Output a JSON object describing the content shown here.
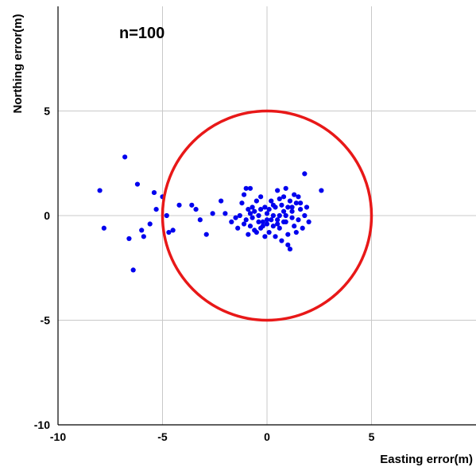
{
  "chart_data": {
    "type": "scatter",
    "annotation": "n=100",
    "xlabel": "Easting error(m)",
    "ylabel": "Northing error(m)",
    "xlim": [
      -10,
      10
    ],
    "ylim": [
      -10,
      10
    ],
    "x_ticks": [
      -10,
      -5,
      0,
      5
    ],
    "y_ticks": [
      -10,
      -5,
      0,
      5
    ],
    "grid": true,
    "point_color": "#0000ee",
    "circle": {
      "center": [
        0,
        0
      ],
      "radius": 5,
      "color": "#e81818"
    },
    "points": [
      [
        -8.0,
        1.2
      ],
      [
        -7.8,
        -0.6
      ],
      [
        -6.8,
        2.8
      ],
      [
        -6.6,
        -1.1
      ],
      [
        -6.4,
        -2.6
      ],
      [
        -6.2,
        1.5
      ],
      [
        -6.0,
        -0.7
      ],
      [
        -5.9,
        -1.0
      ],
      [
        -5.6,
        -0.4
      ],
      [
        -5.4,
        1.1
      ],
      [
        -5.3,
        0.3
      ],
      [
        -5.0,
        0.9
      ],
      [
        -4.8,
        0.0
      ],
      [
        -4.7,
        -0.8
      ],
      [
        -4.5,
        -0.7
      ],
      [
        -4.2,
        0.5
      ],
      [
        -3.6,
        0.5
      ],
      [
        -3.4,
        0.3
      ],
      [
        -3.2,
        -0.2
      ],
      [
        -2.9,
        -0.9
      ],
      [
        -2.6,
        0.1
      ],
      [
        -2.2,
        0.7
      ],
      [
        -2.0,
        0.1
      ],
      [
        -1.7,
        -0.3
      ],
      [
        -1.4,
        -0.6
      ],
      [
        -1.3,
        0.0
      ],
      [
        -1.2,
        0.6
      ],
      [
        -1.1,
        1.0
      ],
      [
        -1.0,
        -0.2
      ],
      [
        -1.0,
        1.3
      ],
      [
        -0.9,
        -0.9
      ],
      [
        -0.9,
        0.3
      ],
      [
        -0.8,
        1.3
      ],
      [
        -0.8,
        -0.5
      ],
      [
        -0.7,
        -0.1
      ],
      [
        -0.6,
        0.2
      ],
      [
        -0.6,
        -0.7
      ],
      [
        -0.5,
        0.7
      ],
      [
        -0.4,
        -0.3
      ],
      [
        -0.4,
        0.0
      ],
      [
        -0.3,
        -0.6
      ],
      [
        -0.3,
        0.9
      ],
      [
        -0.2,
        -0.3
      ],
      [
        -0.1,
        0.4
      ],
      [
        -0.1,
        -1.0
      ],
      [
        0.0,
        0.1
      ],
      [
        0.0,
        -0.4
      ],
      [
        0.1,
        -0.8
      ],
      [
        0.1,
        0.3
      ],
      [
        0.2,
        -0.2
      ],
      [
        0.2,
        0.7
      ],
      [
        0.3,
        -0.5
      ],
      [
        0.3,
        0.0
      ],
      [
        0.4,
        0.4
      ],
      [
        0.4,
        -1.0
      ],
      [
        0.5,
        1.2
      ],
      [
        0.5,
        -0.2
      ],
      [
        0.6,
        0.0
      ],
      [
        0.6,
        -0.6
      ],
      [
        0.7,
        0.5
      ],
      [
        0.7,
        -1.2
      ],
      [
        0.8,
        0.9
      ],
      [
        0.8,
        0.2
      ],
      [
        0.9,
        -0.3
      ],
      [
        0.9,
        1.3
      ],
      [
        1.0,
        0.4
      ],
      [
        1.0,
        -0.9
      ],
      [
        1.0,
        -1.4
      ],
      [
        1.1,
        -1.6
      ],
      [
        1.1,
        0.7
      ],
      [
        1.2,
        -0.1
      ],
      [
        1.2,
        0.2
      ],
      [
        1.3,
        -0.5
      ],
      [
        1.3,
        1.0
      ],
      [
        1.4,
        0.6
      ],
      [
        1.5,
        -0.2
      ],
      [
        1.5,
        0.9
      ],
      [
        1.6,
        0.3
      ],
      [
        1.7,
        -0.6
      ],
      [
        1.8,
        0.0
      ],
      [
        1.8,
        2.0
      ],
      [
        1.9,
        0.4
      ],
      [
        2.0,
        -0.3
      ],
      [
        2.6,
        1.2
      ],
      [
        -1.5,
        -0.1
      ],
      [
        -0.2,
        -0.5
      ],
      [
        0.8,
        -0.3
      ],
      [
        1.4,
        -0.8
      ],
      [
        -0.7,
        0.4
      ],
      [
        0.3,
        0.5
      ],
      [
        -1.1,
        -0.4
      ],
      [
        0.5,
        -0.4
      ],
      [
        1.2,
        0.4
      ],
      [
        0.0,
        -0.2
      ],
      [
        -0.5,
        -0.8
      ],
      [
        0.6,
        0.8
      ],
      [
        -0.3,
        0.3
      ],
      [
        1.6,
        0.6
      ],
      [
        0.9,
        0.0
      ],
      [
        -0.8,
        0.1
      ]
    ]
  }
}
